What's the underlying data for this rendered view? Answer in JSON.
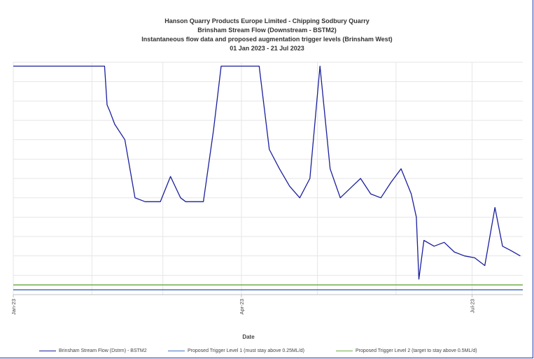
{
  "header": {
    "title_lines": [
      "Hanson Quarry Products Europe Limited - Chipping Sodbury Quarry",
      "Brinsham Stream Flow (Downstream - BSTM2)",
      "Instantaneous flow data and proposed augmentation trigger levels (Brinsham West)",
      "01 Jan 2023 - 21 Jul 2023"
    ]
  },
  "chart_data": {
    "type": "line",
    "title": "Hanson Quarry Products Europe Limited - Chipping Sodbury Quarry",
    "subtitle": "Brinsham Stream Flow (Downstream - BSTM2) / Instantaneous flow data and proposed augmentation trigger levels (Brinsham West) / 01 Jan 2023 - 21 Jul 2023",
    "xlabel": "Date",
    "ylabel": "",
    "x_ticks": [
      "Jan-23",
      "Apr-23",
      "Jul-23"
    ],
    "x_range": [
      "2023-01-01",
      "2023-07-21"
    ],
    "y_range": [
      0,
      12
    ],
    "y_tick_labels_visible": false,
    "grid": true,
    "legend_position": "bottom",
    "series": [
      {
        "name": "Brinsham Stream Flow (Dstrm) - BSTM2",
        "color": "#1a1f9c",
        "segments": [
          {
            "x": [
              "2023-01-01",
              "2023-02-06",
              "2023-02-07",
              "2023-02-08",
              "2023-02-10",
              "2023-02-14",
              "2023-02-18",
              "2023-02-22",
              "2023-02-28",
              "2023-03-04",
              "2023-03-08",
              "2023-03-10",
              "2023-03-14",
              "2023-03-17",
              "2023-03-21",
              "2023-03-24",
              "2023-03-27",
              "2023-03-31",
              "2023-04-04",
              "2023-04-08",
              "2023-04-12",
              "2023-04-16",
              "2023-04-20",
              "2023-04-24",
              "2023-04-28",
              "2023-05-02",
              "2023-05-06",
              "2023-05-10",
              "2023-05-14",
              "2023-05-18",
              "2023-05-22",
              "2023-05-26",
              "2023-05-30",
              "2023-06-03",
              "2023-06-07",
              "2023-06-09",
              "2023-06-10",
              "2023-06-12",
              "2023-06-16",
              "2023-06-20",
              "2023-06-24",
              "2023-06-28",
              "2023-07-02",
              "2023-07-06",
              "2023-07-10",
              "2023-07-13",
              "2023-07-16",
              "2023-07-20"
            ],
            "y": [
              11.8,
              11.8,
              9.8,
              9.5,
              8.8,
              8.0,
              5.0,
              4.8,
              4.8,
              6.1,
              5.0,
              4.8,
              4.8,
              4.8,
              8.5,
              11.8,
              11.8,
              11.8,
              11.8,
              11.8,
              7.5,
              6.5,
              5.6,
              5.0,
              6.0,
              11.8,
              6.5,
              5.0,
              5.5,
              6.0,
              5.2,
              5.0,
              5.8,
              6.5,
              5.2,
              4.0,
              0.8,
              2.8,
              2.5,
              2.7,
              2.2,
              2.0,
              1.9,
              1.5,
              4.5,
              2.5,
              2.3,
              2.0
            ]
          }
        ]
      },
      {
        "name": "Proposed Trigger Level 1 (must stay above 0.25ML/d)",
        "color": "#4472c4",
        "y_constant": 0.25
      },
      {
        "name": "Proposed Trigger Level 2 (target to stay above 0.5ML/d)",
        "color": "#70ad47",
        "y_constant": 0.5
      }
    ]
  }
}
